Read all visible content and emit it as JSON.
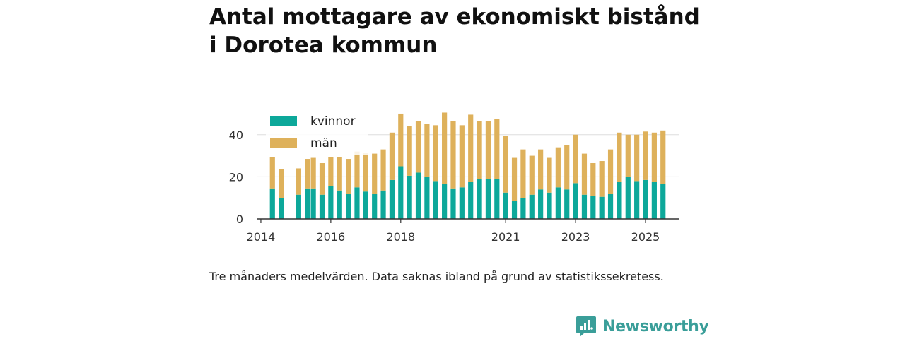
{
  "title": {
    "line1": "Antal mottagare av ekonomiskt bistånd",
    "line2": "i Dorotea kommun"
  },
  "caption": "Tre månaders medelvärden. Data saknas ibland på grund av statistikssekretess.",
  "brand": {
    "name": "Newsworthy",
    "icon": "newsworthy-logo-icon"
  },
  "colors": {
    "kvinnor": "#0da89a",
    "man": "#deb15b",
    "grid": "#dddddd",
    "axis": "#333333",
    "brand": "#3a9e99"
  },
  "chart_data": {
    "type": "bar",
    "stacked": true,
    "title": "Antal mottagare av ekonomiskt bistånd i Dorotea kommun",
    "xlabel": "",
    "ylabel": "",
    "ylim": [
      0,
      52
    ],
    "yticks": [
      0,
      20,
      40
    ],
    "legend": {
      "position": "top-left",
      "entries": [
        "kvinnor",
        "män"
      ]
    },
    "xticks": [
      {
        "label": "2014",
        "date": 2014.0
      },
      {
        "label": "2016",
        "date": 2016.0
      },
      {
        "label": "2018",
        "date": 2018.0
      },
      {
        "label": "2021",
        "date": 2021.0
      },
      {
        "label": "2023",
        "date": 2023.0
      },
      {
        "label": "2025",
        "date": 2025.0
      }
    ],
    "dates": [
      2014.33,
      2014.58,
      2015.08,
      2015.33,
      2015.5,
      2015.75,
      2016.0,
      2016.25,
      2016.5,
      2016.75,
      2017.0,
      2017.25,
      2017.5,
      2017.75,
      2018.0,
      2018.25,
      2018.5,
      2018.75,
      2019.0,
      2019.25,
      2019.5,
      2019.75,
      2020.0,
      2020.25,
      2020.5,
      2020.75,
      2021.0,
      2021.25,
      2021.5,
      2021.75,
      2022.0,
      2022.25,
      2022.5,
      2022.75,
      2023.0,
      2023.25,
      2023.5,
      2023.75,
      2024.0,
      2024.25,
      2024.5,
      2024.75,
      2025.0,
      2025.25,
      2025.5
    ],
    "series": [
      {
        "name": "kvinnor",
        "values": [
          14.5,
          10,
          11.5,
          14.5,
          14.5,
          11.5,
          15.5,
          13.5,
          12,
          15,
          13,
          12,
          13.5,
          18.5,
          25,
          20.5,
          22,
          20,
          18,
          16.5,
          14.5,
          15,
          17.5,
          19,
          19,
          19,
          12.5,
          8.5,
          10,
          11.5,
          14,
          12.5,
          15,
          14,
          17,
          11.5,
          11,
          10.5,
          12,
          17.5,
          20,
          18,
          18.5,
          17.5,
          16.5
        ]
      },
      {
        "name": "män",
        "values": [
          15,
          13.5,
          12.5,
          14,
          14.5,
          15,
          14,
          16,
          16.5,
          17,
          18.5,
          19,
          19.5,
          22.5,
          25,
          23.5,
          24.5,
          25,
          26.5,
          34,
          32,
          29.5,
          32,
          27.5,
          27.5,
          28.5,
          27,
          20.5,
          23,
          18.5,
          19,
          16.5,
          19,
          21,
          23,
          19.5,
          15.5,
          17,
          21,
          23.5,
          20,
          22,
          23,
          23.5,
          25.5
        ]
      }
    ]
  }
}
